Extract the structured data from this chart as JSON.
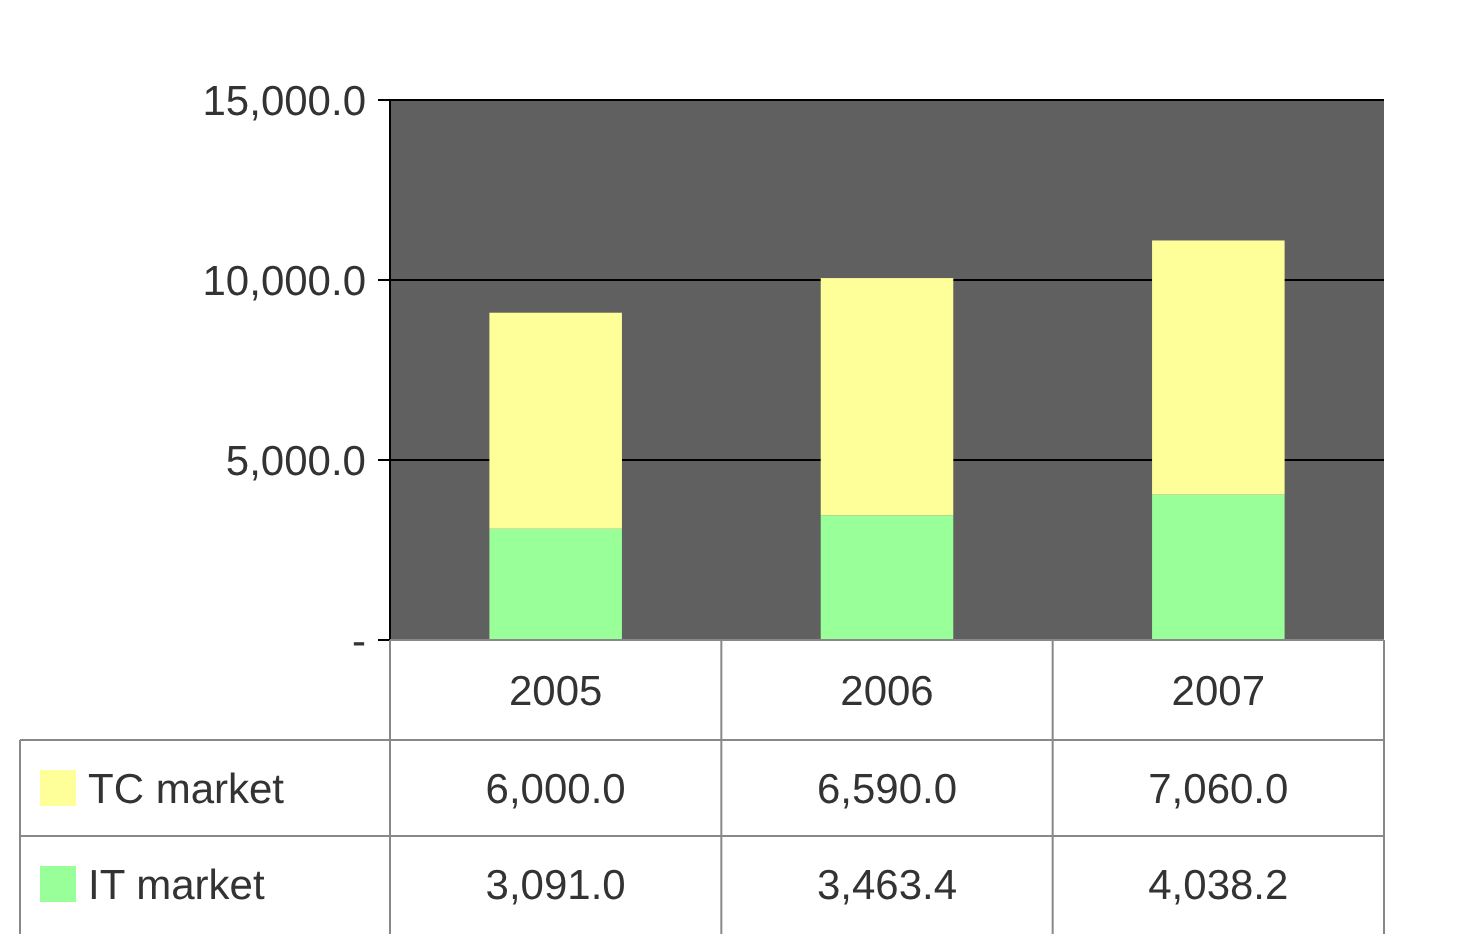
{
  "chart_data": {
    "type": "bar",
    "stacked": true,
    "categories": [
      "2005",
      "2006",
      "2007"
    ],
    "series": [
      {
        "name": "IT market",
        "color": "#99ff99",
        "values": [
          3091.0,
          3463.4,
          4038.2
        ],
        "value_labels": [
          "3,091.0",
          "3,463.4",
          "4,038.2"
        ]
      },
      {
        "name": "TC market",
        "color": "#ffff99",
        "values": [
          6000.0,
          6590.0,
          7060.0
        ],
        "value_labels": [
          "6,000.0",
          "6,590.0",
          "7,060.0"
        ]
      }
    ],
    "ylim": [
      0,
      15000
    ],
    "yticks": [
      {
        "value": 0,
        "label": "-"
      },
      {
        "value": 5000,
        "label": "5,000.0"
      },
      {
        "value": 10000,
        "label": "10,000.0"
      },
      {
        "value": 15000,
        "label": "15,000.0"
      }
    ],
    "grid": "y",
    "legend": "bottom"
  }
}
